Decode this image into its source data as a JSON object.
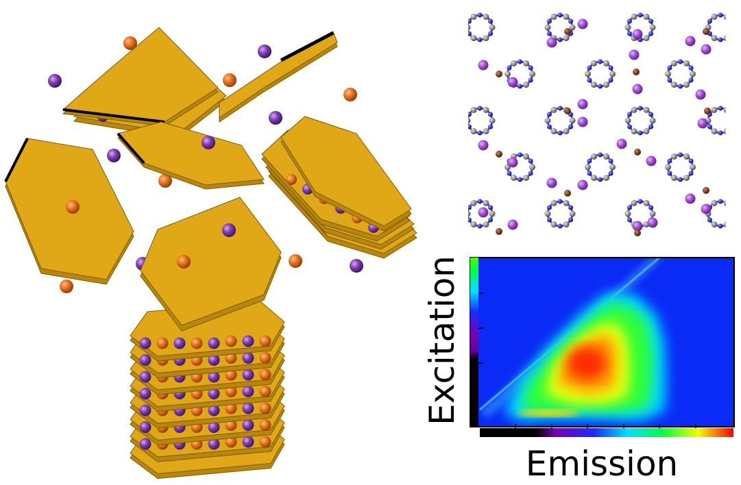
{
  "figure": {
    "panels": [
      "layered-nanosheet-exfoliation",
      "crystal-structure-lattice",
      "excitation-emission-map"
    ],
    "colors": {
      "sheet_top": "#E0A816",
      "sheet_side": "#B8860B",
      "sheet_edge": "#7A5A05",
      "orange_ion": "#E8731E",
      "purple_ion": "#7E3FB0",
      "lattice_bond": "#3030D8",
      "lattice_atom": "#8A8A8A",
      "lattice_ion_large": "#A24BD6",
      "lattice_ion_small": "#7A3B1A"
    },
    "heatmap": {
      "xlabel": "Emission",
      "ylabel": "Excitation",
      "colormap": [
        "#000000",
        "#7A00B5",
        "#1A2BFF",
        "#00E0FF",
        "#00FF44",
        "#F0FF00",
        "#FF0000"
      ]
    }
  }
}
